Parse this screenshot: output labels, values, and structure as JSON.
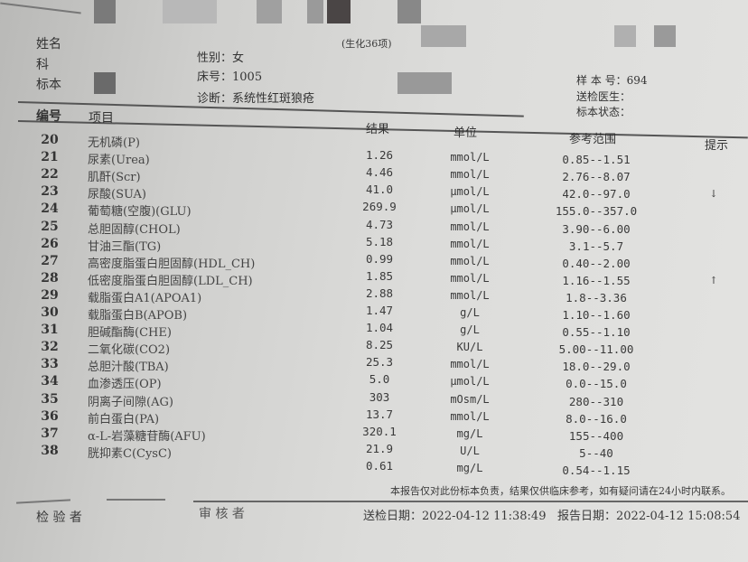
{
  "header": {
    "title_suffix": "(生化36项)",
    "name_label": "姓名",
    "dept_label": "科",
    "specimen_label": "标本",
    "gender": "性别：女",
    "bed": "床号：1005",
    "diagnosis": "诊断：系统性红斑狼疮",
    "sample_no": "样 本 号：694",
    "doctor": "送检医生：",
    "specimen_status": "标本状态："
  },
  "columns": {
    "no": "编号",
    "item": "项目",
    "result": "结果",
    "unit": "单位",
    "range": "参考范围",
    "hint": "提示"
  },
  "rows": [
    {
      "no": "20",
      "item": "无机磷(P)",
      "result": "",
      "unit": "",
      "range": "",
      "hint": ""
    },
    {
      "no": "21",
      "item": "尿素(Urea)",
      "result": "1.26",
      "unit": "mmol/L",
      "range": "0.85--1.51",
      "hint": ""
    },
    {
      "no": "22",
      "item": "肌酐(Scr)",
      "result": "4.46",
      "unit": "mmol/L",
      "range": "2.76--8.07",
      "hint": ""
    },
    {
      "no": "23",
      "item": "尿酸(SUA)",
      "result": "41.0",
      "unit": "μmol/L",
      "range": "42.0--97.0",
      "hint": "↓"
    },
    {
      "no": "24",
      "item": "葡萄糖(空腹)(GLU)",
      "result": "269.9",
      "unit": "μmol/L",
      "range": "155.0--357.0",
      "hint": ""
    },
    {
      "no": "25",
      "item": "总胆固醇(CHOL)",
      "result": "4.73",
      "unit": "mmol/L",
      "range": "3.90--6.00",
      "hint": ""
    },
    {
      "no": "26",
      "item": "甘油三酯(TG)",
      "result": "5.18",
      "unit": "mmol/L",
      "range": "3.1--5.7",
      "hint": ""
    },
    {
      "no": "27",
      "item": "高密度脂蛋白胆固醇(HDL_CH)",
      "result": "0.99",
      "unit": "mmol/L",
      "range": "0.40--2.00",
      "hint": ""
    },
    {
      "no": "28",
      "item": "低密度脂蛋白胆固醇(LDL_CH)",
      "result": "1.85",
      "unit": "mmol/L",
      "range": "1.16--1.55",
      "hint": "↑"
    },
    {
      "no": "29",
      "item": "载脂蛋白A1(APOA1)",
      "result": "2.88",
      "unit": "mmol/L",
      "range": "1.8--3.36",
      "hint": ""
    },
    {
      "no": "30",
      "item": "载脂蛋白B(APOB)",
      "result": "1.47",
      "unit": "g/L",
      "range": "1.10--1.60",
      "hint": ""
    },
    {
      "no": "31",
      "item": "胆碱酯酶(CHE)",
      "result": "1.04",
      "unit": "g/L",
      "range": "0.55--1.10",
      "hint": ""
    },
    {
      "no": "32",
      "item": "二氧化碳(CO2)",
      "result": "8.25",
      "unit": "KU/L",
      "range": "5.00--11.00",
      "hint": ""
    },
    {
      "no": "33",
      "item": "总胆汁酸(TBA)",
      "result": "25.3",
      "unit": "mmol/L",
      "range": "18.0--29.0",
      "hint": ""
    },
    {
      "no": "34",
      "item": "血渗透压(OP)",
      "result": "5.0",
      "unit": "μmol/L",
      "range": "0.0--15.0",
      "hint": ""
    },
    {
      "no": "35",
      "item": "阴离子间隙(AG)",
      "result": "303",
      "unit": "mOsm/L",
      "range": "280--310",
      "hint": ""
    },
    {
      "no": "36",
      "item": "前白蛋白(PA)",
      "result": "13.7",
      "unit": "mmol/L",
      "range": "8.0--16.0",
      "hint": ""
    },
    {
      "no": "37",
      "item": "α-L-岩藻糖苷酶(AFU)",
      "result": "320.1",
      "unit": "mg/L",
      "range": "155--400",
      "hint": ""
    },
    {
      "no": "38",
      "item": "胱抑素C(CysC)",
      "result": "21.9",
      "unit": "U/L",
      "range": "5--40",
      "hint": ""
    },
    {
      "no": "",
      "item": "",
      "result": "0.61",
      "unit": "mg/L",
      "range": "0.54--1.15",
      "hint": ""
    }
  ],
  "footer": {
    "disclaimer": "本报告仅对此份标本负责，结果仅供临床参考，如有疑问请在24小时内联系。",
    "tester": "检 验 者",
    "reviewer": "审 核 者",
    "submit_date": "送检日期：2022-04-12 11:38:49",
    "report_date": "报告日期：2022-04-12 15:08:54"
  }
}
